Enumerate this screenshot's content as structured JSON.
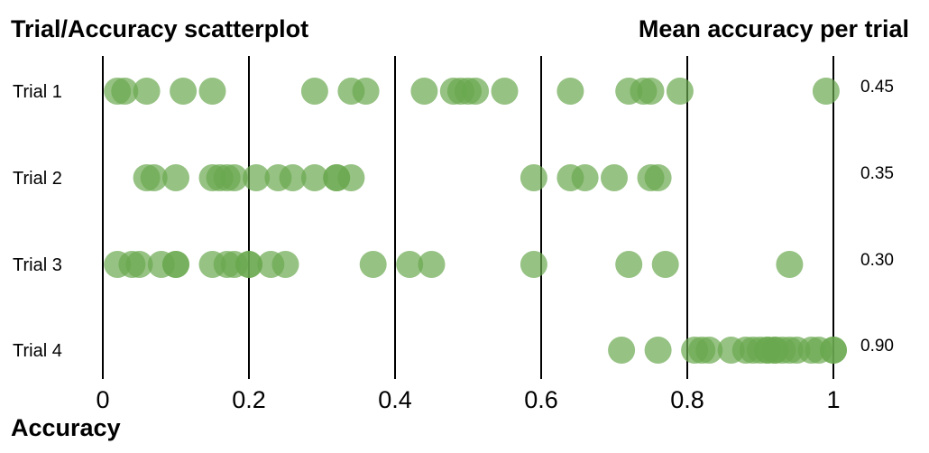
{
  "chart_data": {
    "type": "scatter",
    "title": "Trial/Accuracy scatterplot",
    "right_title": "Mean accuracy per trial",
    "xlabel": "Accuracy",
    "xlim": [
      0,
      1
    ],
    "xticks": [
      "0",
      "0.2",
      "0.4",
      "0.6",
      "0.8",
      "1"
    ],
    "grid": true,
    "point_color": "#6aa84f",
    "series": [
      {
        "name": "Trial 1",
        "mean_label": "0.45",
        "values": [
          0.02,
          0.03,
          0.06,
          0.11,
          0.15,
          0.29,
          0.34,
          0.36,
          0.44,
          0.48,
          0.49,
          0.5,
          0.51,
          0.55,
          0.64,
          0.72,
          0.74,
          0.75,
          0.79,
          0.99
        ]
      },
      {
        "name": "Trial 2",
        "mean_label": "0.35",
        "values": [
          0.06,
          0.07,
          0.1,
          0.15,
          0.16,
          0.17,
          0.18,
          0.21,
          0.24,
          0.26,
          0.29,
          0.32,
          0.32,
          0.34,
          0.59,
          0.64,
          0.66,
          0.7,
          0.75,
          0.76
        ]
      },
      {
        "name": "Trial 3",
        "mean_label": "0.30",
        "values": [
          0.02,
          0.04,
          0.05,
          0.08,
          0.1,
          0.1,
          0.15,
          0.17,
          0.18,
          0.2,
          0.2,
          0.23,
          0.25,
          0.37,
          0.42,
          0.45,
          0.59,
          0.72,
          0.77,
          0.94
        ]
      },
      {
        "name": "Trial 4",
        "mean_label": "0.90",
        "values": [
          0.71,
          0.76,
          0.81,
          0.82,
          0.83,
          0.86,
          0.88,
          0.89,
          0.9,
          0.91,
          0.91,
          0.92,
          0.92,
          0.93,
          0.94,
          0.95,
          0.97,
          0.98,
          1.0,
          1.0
        ]
      }
    ]
  }
}
